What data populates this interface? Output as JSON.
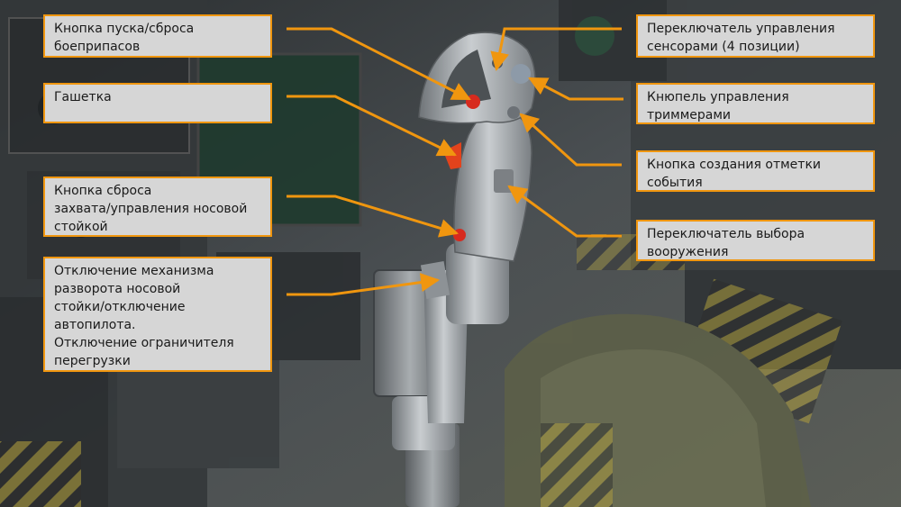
{
  "labels": {
    "weapon_release": "Кнопка пуска/сброса\nбоеприпасов",
    "trigger": "Гашетка",
    "nosewheel_button": "Кнопка сброса\nзахвата/управления носовой\nстойкой",
    "paddle_switch": "Отключение механизма\nразворота носовой\nстойки/отключение\nавтопилота.\nОтключение ограничителя\nперегрузки",
    "sensor_control": "Переключатель управления\nсенсорами (4 позиции)",
    "trim_hat": "Кнюпель управления\nтриммерами",
    "event_mark": "Кнопка создания отметки\nсобытия",
    "weapon_select": "Переключатель выбора\nвооружения"
  },
  "colors": {
    "leader_line": "#f0960f",
    "label_bg": "#d6d6d6",
    "label_border": "#f0960f"
  }
}
